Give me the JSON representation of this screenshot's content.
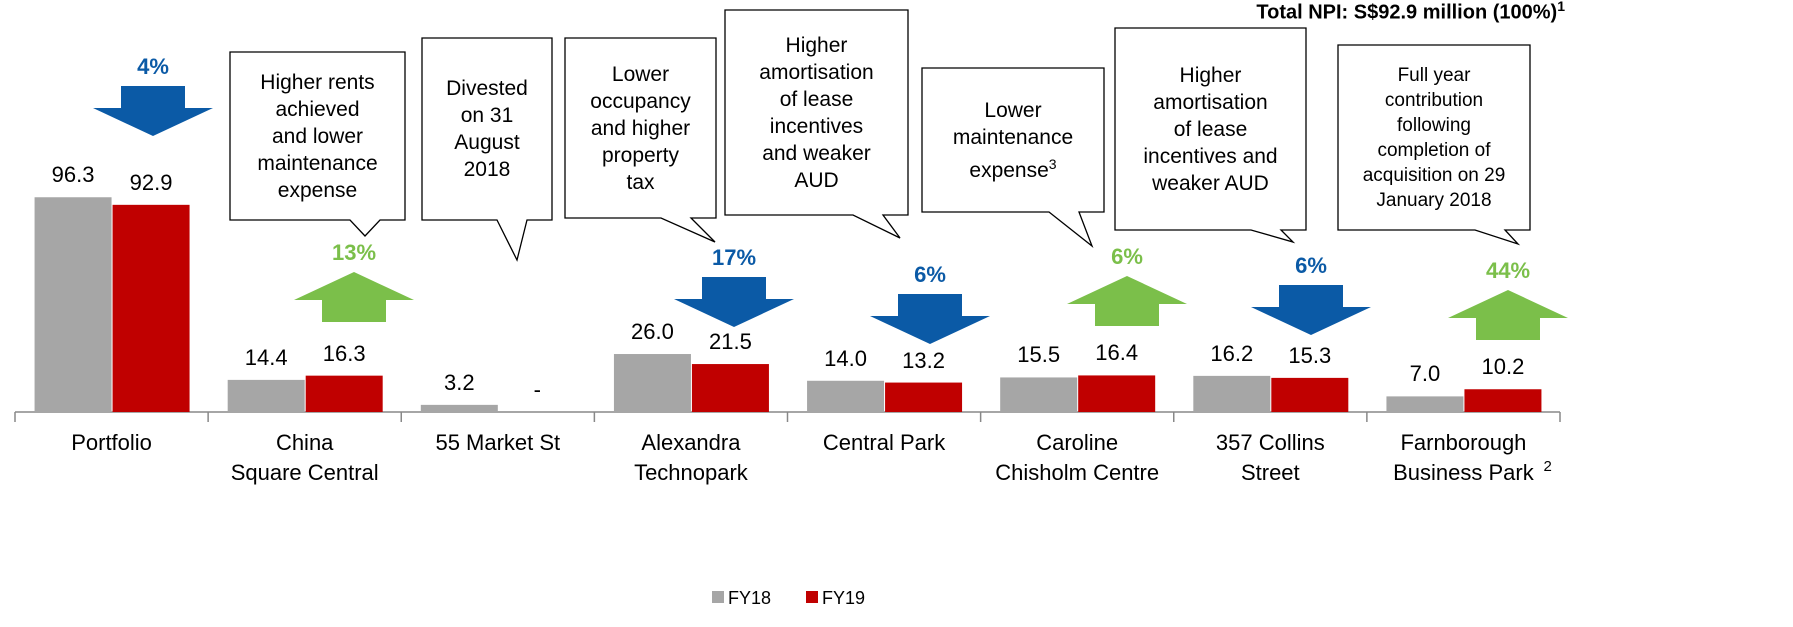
{
  "chart_data": {
    "type": "bar",
    "title": "Total NPI: S$92.9 million (100%)",
    "title_sup": "1",
    "categories": [
      "Portfolio",
      "China\nSquare Central",
      "55 Market St",
      "Alexandra\nTechnopark",
      "Central Park",
      "Caroline\nChisholm Centre",
      "357 Collins\nStreet",
      "Farnborough\nBusiness Park"
    ],
    "footnote_marks": [
      {
        "category": 7,
        "text": "2"
      }
    ],
    "ylim": [
      0,
      100
    ],
    "series": [
      {
        "name": "FY18",
        "color": "#a6a6a6",
        "values": [
          96.3,
          14.4,
          3.2,
          26.0,
          14.0,
          15.5,
          16.2,
          7.0
        ],
        "value_labels": [
          "96.3",
          "14.4",
          "3.2",
          "26.0",
          "14.0",
          "15.5",
          "16.2",
          "7.0"
        ]
      },
      {
        "name": "FY19",
        "color": "#c00000",
        "values": [
          92.9,
          16.3,
          null,
          21.5,
          13.2,
          16.4,
          15.3,
          10.2
        ],
        "value_labels": [
          "92.9",
          "16.3",
          "-",
          "21.5",
          "13.2",
          "16.4",
          "15.3",
          "10.2"
        ]
      }
    ],
    "changes": [
      {
        "category": 0,
        "label": "4%",
        "direction": "down",
        "color": "#0b5aa6"
      },
      {
        "category": 1,
        "label": "13%",
        "direction": "up",
        "color": "#7bbf4a"
      },
      {
        "category": 3,
        "label": "17%",
        "direction": "down",
        "color": "#0b5aa6"
      },
      {
        "category": 4,
        "label": "6%",
        "direction": "down",
        "color": "#0b5aa6"
      },
      {
        "category": 5,
        "label": "6%",
        "direction": "up",
        "color": "#7bbf4a"
      },
      {
        "category": 6,
        "label": "6%",
        "direction": "down",
        "color": "#0b5aa6"
      },
      {
        "category": 7,
        "label": "44%",
        "direction": "up",
        "color": "#7bbf4a"
      }
    ],
    "callouts": [
      {
        "category": 1,
        "text": "Higher rents\nachieved\nand lower\nmaintenance\nexpense"
      },
      {
        "category": 2,
        "text": "Divested\non 31\nAugust\n2018"
      },
      {
        "category": 3,
        "text": "Lower\noccupancy\nand higher\nproperty\ntax"
      },
      {
        "category": 4,
        "text": "Higher\namortisation\nof lease\nincentives\nand weaker\nAUD"
      },
      {
        "category": 5,
        "text": "Lower\nmaintenance\nexpense",
        "sup": "3"
      },
      {
        "category": 6,
        "text": "Higher\namortisation\nof lease\nincentives and\nweaker AUD"
      },
      {
        "category": 7,
        "text": "Full year\ncontribution\nfollowing\ncompletion of\nacquisition on 29\nJanuary 2018"
      }
    ]
  }
}
